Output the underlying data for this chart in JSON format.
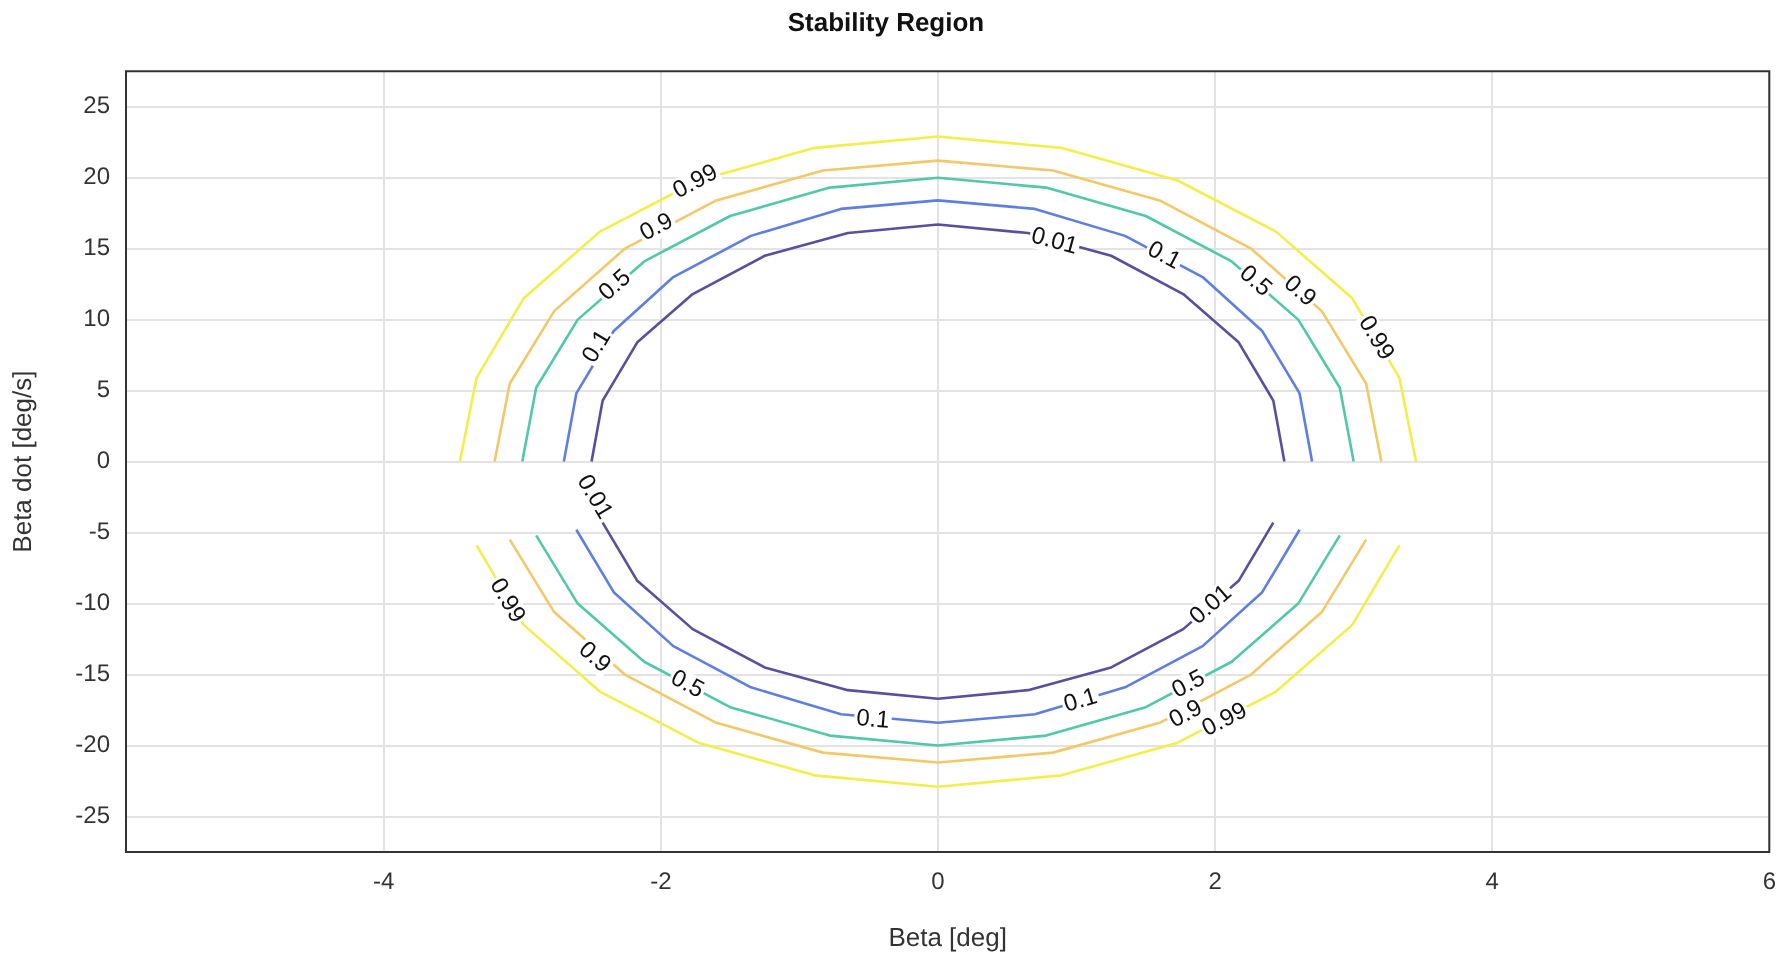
{
  "chart_data": {
    "type": "line",
    "title": "Stability Region",
    "xlabel": "Beta [deg]",
    "ylabel": "Beta dot [deg/s]",
    "xlim": [
      -5.86,
      6
    ],
    "xticks": [
      -4,
      -2,
      0,
      2,
      4,
      6
    ],
    "ylim": [
      -27.5,
      27.5
    ],
    "yticks": [
      -25,
      -20,
      -15,
      -10,
      -5,
      0,
      5,
      10,
      15,
      20,
      25
    ],
    "grid": true,
    "marker": "none",
    "line_style": "solid",
    "series": [
      {
        "color": "#5b4e9e",
        "x": [
          -2.5,
          -2.42,
          -2.17,
          -1.77,
          -1.25,
          -0.65,
          0,
          0.65,
          1.25,
          1.77,
          2.17,
          2.42,
          2.5
        ],
        "values": [
          0,
          4.3,
          8.4,
          11.8,
          14.5,
          16.1,
          16.7,
          16.1,
          14.5,
          11.8,
          8.4,
          4.3,
          0
        ]
      },
      {
        "color": "#5b4e9e",
        "x": [
          -2.42,
          -2.17,
          -1.77,
          -1.25,
          -0.65,
          0,
          0.65,
          1.25,
          1.77,
          2.17,
          2.42
        ],
        "values": [
          -4.3,
          -8.4,
          -11.8,
          -14.5,
          -16.1,
          -16.7,
          -16.1,
          -14.5,
          -11.8,
          -8.4,
          -4.3
        ]
      },
      {
        "color": "#5f7fe0",
        "x": [
          -2.7,
          -2.61,
          -2.34,
          -1.91,
          -1.35,
          -0.7,
          0,
          0.7,
          1.35,
          1.91,
          2.34,
          2.61,
          2.7
        ],
        "values": [
          0,
          4.8,
          9.2,
          13,
          15.9,
          17.8,
          18.4,
          17.8,
          15.9,
          13,
          9.2,
          4.8,
          0
        ]
      },
      {
        "color": "#5f7fe0",
        "x": [
          -2.61,
          -2.34,
          -1.91,
          -1.35,
          -0.7,
          0,
          0.7,
          1.35,
          1.91,
          2.34,
          2.61
        ],
        "values": [
          -4.8,
          -9.2,
          -13,
          -15.9,
          -17.8,
          -18.4,
          -17.8,
          -15.9,
          -13,
          -9.2,
          -4.8
        ]
      },
      {
        "color": "#52c8aa",
        "x": [
          -3,
          -2.9,
          -2.6,
          -2.12,
          -1.5,
          -0.78,
          0,
          0.78,
          1.5,
          2.12,
          2.6,
          2.9,
          3
        ],
        "values": [
          0,
          5.2,
          10,
          14.1,
          17.3,
          19.3,
          20,
          19.3,
          17.3,
          14.1,
          10,
          5.2,
          0
        ]
      },
      {
        "color": "#52c8aa",
        "x": [
          -2.9,
          -2.6,
          -2.12,
          -1.5,
          -0.78,
          0,
          0.78,
          1.5,
          2.12,
          2.6,
          2.9
        ],
        "values": [
          -5.2,
          -10,
          -14.1,
          -17.3,
          -19.3,
          -20,
          -19.3,
          -17.3,
          -14.1,
          -10,
          -5.2
        ]
      },
      {
        "color": "#f2c868",
        "x": [
          -3.2,
          -3.09,
          -2.77,
          -2.26,
          -1.6,
          -0.83,
          0,
          0.83,
          1.6,
          2.26,
          2.77,
          3.09,
          3.2
        ],
        "values": [
          0,
          5.5,
          10.6,
          15,
          18.4,
          20.5,
          21.2,
          20.5,
          18.4,
          15,
          10.6,
          5.5,
          0
        ]
      },
      {
        "color": "#f2c868",
        "x": [
          -3.09,
          -2.77,
          -2.26,
          -1.6,
          -0.83,
          0,
          0.83,
          1.6,
          2.26,
          2.77,
          3.09
        ],
        "values": [
          -5.5,
          -10.6,
          -15,
          -18.4,
          -20.5,
          -21.2,
          -20.5,
          -18.4,
          -15,
          -10.6,
          -5.5
        ]
      },
      {
        "color": "#f2ef4a",
        "x": [
          -3.45,
          -3.33,
          -2.99,
          -2.44,
          -1.73,
          -0.89,
          0,
          0.89,
          1.73,
          2.44,
          2.99,
          3.33,
          3.45
        ],
        "values": [
          0,
          5.9,
          11.5,
          16.2,
          19.8,
          22.1,
          22.9,
          22.1,
          19.8,
          16.2,
          11.5,
          5.9,
          0
        ]
      },
      {
        "color": "#f2ef4a",
        "x": [
          -3.33,
          -2.99,
          -2.44,
          -1.73,
          -0.89,
          0,
          0.89,
          1.73,
          2.44,
          2.99,
          3.33
        ],
        "values": [
          -5.9,
          -11.5,
          -16.2,
          -19.8,
          -22.1,
          -22.9,
          -22.1,
          -19.8,
          -16.2,
          -11.5,
          -5.9
        ]
      }
    ],
    "annotations": [
      {
        "text": "0.99",
        "x": -1.75,
        "y": 19.7
      },
      {
        "text": "0.9",
        "x": -2.03,
        "y": 16.5
      },
      {
        "text": "0.5",
        "x": -2.33,
        "y": 12.4
      },
      {
        "text": "0.1",
        "x": -2.46,
        "y": 8.1
      },
      {
        "text": "0.01",
        "x": -2.48,
        "y": -2.5
      },
      {
        "text": "0.01",
        "x": 0.84,
        "y": 15.5
      },
      {
        "text": "0.1",
        "x": 1.63,
        "y": 14.5
      },
      {
        "text": "0.5",
        "x": 2.29,
        "y": 12.7
      },
      {
        "text": "0.9",
        "x": 2.61,
        "y": 12.0
      },
      {
        "text": "0.99",
        "x": 3.16,
        "y": 8.7
      },
      {
        "text": "0.99",
        "x": -3.11,
        "y": -9.8
      },
      {
        "text": "0.9",
        "x": -2.48,
        "y": -13.8
      },
      {
        "text": "0.5",
        "x": -1.81,
        "y": -15.7
      },
      {
        "text": "0.1",
        "x": -0.47,
        "y": -18.2
      },
      {
        "text": "0.01",
        "x": 1.97,
        "y": -10.1
      },
      {
        "text": "0.1",
        "x": 1.03,
        "y": -16.85
      },
      {
        "text": "0.5",
        "x": 1.81,
        "y": -15.7
      },
      {
        "text": "0.9",
        "x": 1.79,
        "y": -17.8
      },
      {
        "text": "0.99",
        "x": 2.07,
        "y": -18.2
      }
    ]
  }
}
